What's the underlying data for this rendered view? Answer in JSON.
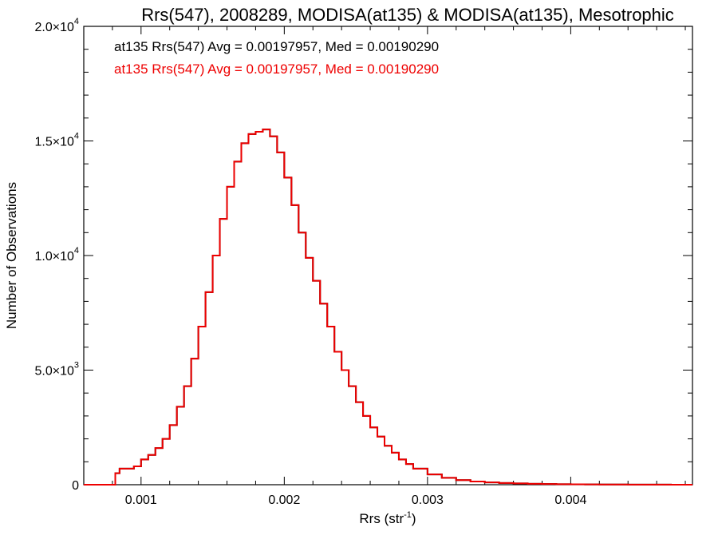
{
  "chart_data": {
    "type": "line",
    "title": "Rrs(547), 2008289, MODISA(at135) & MODISA(at135), Mesotrophic",
    "xlabel_main": "Rrs (str",
    "xlabel_sup": "-1",
    "xlabel_close": ")",
    "ylabel": "Number of Observations",
    "xlim": [
      0.0006,
      0.00485
    ],
    "ylim": [
      0,
      20000
    ],
    "x_ticks": [
      {
        "value": 0.001,
        "label": "0.001"
      },
      {
        "value": 0.002,
        "label": "0.002"
      },
      {
        "value": 0.003,
        "label": "0.003"
      },
      {
        "value": 0.004,
        "label": "0.004"
      }
    ],
    "y_ticks": [
      {
        "value": 0,
        "mant": "0",
        "exp": ""
      },
      {
        "value": 5000,
        "mant": "5.0×10",
        "exp": "3"
      },
      {
        "value": 10000,
        "mant": "1.0×10",
        "exp": "4"
      },
      {
        "value": 15000,
        "mant": "1.5×10",
        "exp": "4"
      },
      {
        "value": 20000,
        "mant": "2.0×10",
        "exp": "4"
      }
    ],
    "annotations": [
      {
        "text": "at135 Rrs(547) Avg = 0.00197957, Med = 0.00190290",
        "color": "#000000"
      },
      {
        "text": "at135 Rrs(547) Avg = 0.00197957, Med = 0.00190290",
        "color": "#ee0000"
      }
    ],
    "series": [
      {
        "color": "#000000",
        "x": [
          0.0006,
          0.00075,
          0.0008,
          0.00082,
          0.00085,
          0.0009,
          0.00095,
          0.001,
          0.00105,
          0.0011,
          0.00115,
          0.0012,
          0.00125,
          0.0013,
          0.00135,
          0.0014,
          0.00145,
          0.0015,
          0.00155,
          0.0016,
          0.00165,
          0.0017,
          0.00175,
          0.0018,
          0.00185,
          0.0019,
          0.00195,
          0.002,
          0.00205,
          0.0021,
          0.00215,
          0.0022,
          0.00225,
          0.0023,
          0.00235,
          0.0024,
          0.00245,
          0.0025,
          0.00255,
          0.0026,
          0.00265,
          0.0027,
          0.00275,
          0.0028,
          0.00285,
          0.0029,
          0.003,
          0.0031,
          0.0032,
          0.0033,
          0.0034,
          0.0035,
          0.0036,
          0.0037,
          0.0038,
          0.0039,
          0.004,
          0.0041,
          0.0042,
          0.0043,
          0.0044,
          0.0045,
          0.0046,
          0.0047,
          0.0048,
          0.00485
        ],
        "y": [
          0,
          0,
          0,
          500,
          700,
          700,
          800,
          1100,
          1300,
          1600,
          2000,
          2600,
          3400,
          4300,
          5500,
          6900,
          8400,
          10000,
          11600,
          13000,
          14100,
          14900,
          15300,
          15400,
          15500,
          15200,
          14500,
          13400,
          12200,
          11000,
          9900,
          8900,
          7900,
          6900,
          5800,
          5000,
          4300,
          3600,
          3000,
          2500,
          2100,
          1700,
          1400,
          1100,
          900,
          700,
          450,
          300,
          200,
          140,
          100,
          75,
          55,
          40,
          30,
          22,
          16,
          12,
          9,
          7,
          5,
          4,
          3,
          2,
          1,
          1
        ]
      },
      {
        "color": "#ee0000",
        "x": [
          0.0006,
          0.00075,
          0.0008,
          0.00082,
          0.00085,
          0.0009,
          0.00095,
          0.001,
          0.00105,
          0.0011,
          0.00115,
          0.0012,
          0.00125,
          0.0013,
          0.00135,
          0.0014,
          0.00145,
          0.0015,
          0.00155,
          0.0016,
          0.00165,
          0.0017,
          0.00175,
          0.0018,
          0.00185,
          0.0019,
          0.00195,
          0.002,
          0.00205,
          0.0021,
          0.00215,
          0.0022,
          0.00225,
          0.0023,
          0.00235,
          0.0024,
          0.00245,
          0.0025,
          0.00255,
          0.0026,
          0.00265,
          0.0027,
          0.00275,
          0.0028,
          0.00285,
          0.0029,
          0.003,
          0.0031,
          0.0032,
          0.0033,
          0.0034,
          0.0035,
          0.0036,
          0.0037,
          0.0038,
          0.0039,
          0.004,
          0.0041,
          0.0042,
          0.0043,
          0.0044,
          0.0045,
          0.0046,
          0.0047,
          0.0048,
          0.00485
        ],
        "y": [
          0,
          0,
          0,
          500,
          700,
          700,
          800,
          1100,
          1300,
          1600,
          2000,
          2600,
          3400,
          4300,
          5500,
          6900,
          8400,
          10000,
          11600,
          13000,
          14100,
          14900,
          15300,
          15400,
          15500,
          15200,
          14500,
          13400,
          12200,
          11000,
          9900,
          8900,
          7900,
          6900,
          5800,
          5000,
          4300,
          3600,
          3000,
          2500,
          2100,
          1700,
          1400,
          1100,
          900,
          700,
          450,
          300,
          200,
          140,
          100,
          75,
          55,
          40,
          30,
          22,
          16,
          12,
          9,
          7,
          5,
          4,
          3,
          2,
          1,
          1
        ]
      }
    ]
  }
}
